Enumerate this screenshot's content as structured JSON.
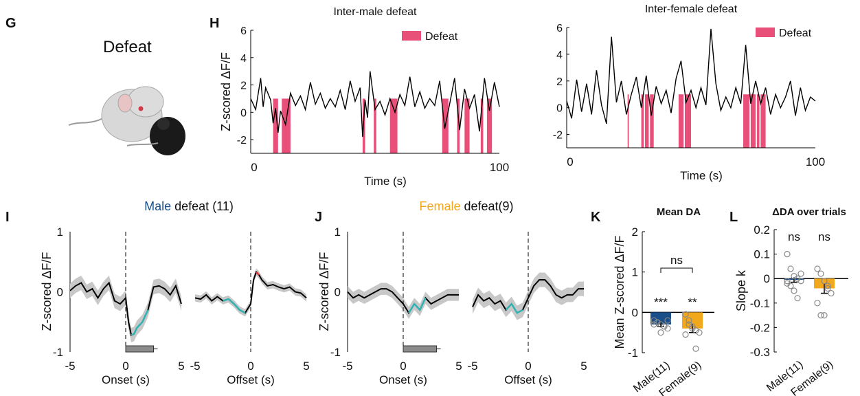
{
  "panel_letters": {
    "G": "G",
    "H": "H",
    "I": "I",
    "J": "J",
    "K": "K",
    "L": "L"
  },
  "illustration": {
    "label": "Defeat"
  },
  "colors": {
    "defeat": "#e8507a",
    "male": "#1a4f8a",
    "female": "#f2a81d",
    "trace": "#000000",
    "sem": "#c8c8c8",
    "cyan": "#2fb3b3",
    "red": "#e03030",
    "bar_gray": "#8c8c8c"
  },
  "chart_data": [
    {
      "id": "H1",
      "type": "line",
      "title": "Inter-male defeat",
      "xlabel": "Time (s)",
      "ylabel": "Z-scored ΔF/F",
      "legend": "Defeat",
      "xlim": [
        0,
        100
      ],
      "ylim": [
        -3,
        6
      ],
      "xticks": [
        "0",
        "100"
      ],
      "yticks": [
        "6",
        "4",
        "2",
        "0",
        "-2"
      ],
      "defeat_intervals": [
        [
          9,
          11
        ],
        [
          12.5,
          16
        ],
        [
          45,
          46
        ],
        [
          49.5,
          50.5
        ],
        [
          56,
          59
        ],
        [
          77,
          79.5
        ],
        [
          83,
          84
        ],
        [
          86,
          88
        ],
        [
          92.5,
          93.5
        ],
        [
          95,
          97
        ]
      ],
      "trace": {
        "x": [
          0,
          2,
          4,
          5,
          6,
          8,
          9,
          10,
          11,
          12,
          14,
          16,
          18,
          20,
          22,
          24,
          26,
          28,
          30,
          32,
          34,
          36,
          38,
          40,
          42,
          44,
          45,
          46,
          47,
          48,
          50,
          52,
          54,
          56,
          58,
          60,
          62,
          64,
          66,
          68,
          70,
          72,
          74,
          76,
          78,
          80,
          82,
          84,
          86,
          88,
          90,
          92,
          94,
          96,
          98,
          100
        ],
        "y": [
          1.0,
          0.2,
          2.5,
          0.4,
          1.8,
          0.9,
          -0.8,
          0.3,
          -1.5,
          0.1,
          -0.9,
          1.4,
          0.5,
          1.2,
          0.2,
          2.2,
          0.6,
          1.4,
          0.3,
          1.0,
          0.4,
          1.6,
          0.2,
          2.3,
          0.8,
          1.8,
          -1.8,
          0.9,
          -0.4,
          3.0,
          0.2,
          0.8,
          -0.2,
          1.0,
          0.0,
          1.3,
          0.5,
          2.6,
          0.4,
          1.5,
          0.3,
          1.0,
          0.5,
          2.3,
          -1.2,
          0.6,
          2.5,
          -1.3,
          1.7,
          0.3,
          1.3,
          -1.4,
          2.5,
          0.1,
          2.2,
          0.4
        ]
      }
    },
    {
      "id": "H2",
      "type": "line",
      "title": "Inter-female defeat",
      "xlabel": "Time (s)",
      "ylabel": "",
      "legend": "Defeat",
      "xlim": [
        0,
        100
      ],
      "ylim": [
        -3,
        6
      ],
      "xticks": [
        "0",
        "100"
      ],
      "yticks": [
        "6",
        "4",
        "2",
        "0",
        "-2"
      ],
      "defeat_intervals": [
        [
          24.5,
          25
        ],
        [
          30,
          31
        ],
        [
          31.5,
          33
        ],
        [
          33.5,
          35
        ],
        [
          45,
          47
        ],
        [
          47.5,
          50
        ],
        [
          71,
          73.5
        ],
        [
          74,
          76
        ],
        [
          76.5,
          77.5
        ],
        [
          78,
          80
        ]
      ],
      "trace": {
        "x": [
          0,
          2,
          4,
          6,
          8,
          10,
          12,
          14,
          16,
          18,
          20,
          22,
          24,
          26,
          28,
          30,
          32,
          34,
          36,
          38,
          40,
          42,
          44,
          46,
          48,
          50,
          52,
          54,
          56,
          58,
          60,
          62,
          64,
          66,
          68,
          70,
          72,
          74,
          76,
          78,
          80,
          82,
          84,
          86,
          88,
          90,
          92,
          94,
          96,
          98,
          100
        ],
        "y": [
          0.5,
          -0.8,
          2.1,
          -0.3,
          1.8,
          -0.5,
          2.8,
          0.2,
          -1.2,
          5.3,
          0.4,
          2.0,
          -0.5,
          1.0,
          2.3,
          0.0,
          2.4,
          -0.6,
          1.6,
          0.3,
          1.3,
          -0.4,
          2.2,
          3.5,
          0.4,
          1.3,
          0.0,
          1.5,
          0.2,
          5.9,
          1.8,
          -0.2,
          0.8,
          0.0,
          1.5,
          0.3,
          4.7,
          0.3,
          2.0,
          0.3,
          1.5,
          -0.5,
          1.0,
          0.0,
          0.8,
          2.0,
          -0.6,
          1.5,
          -0.2,
          0.8,
          0.5
        ]
      }
    },
    {
      "id": "I",
      "type": "line",
      "title": "defeat (11)",
      "title_prefix": "Male",
      "ylabel": "Z-scored ΔF/F",
      "ylim": [
        -1,
        1
      ],
      "yticks": [
        "1",
        "0",
        "-1"
      ],
      "subplots": [
        {
          "xlabel": "Onset (s)",
          "xlim": [
            -5,
            5
          ],
          "xticks": [
            "-5",
            "0",
            "5"
          ],
          "x": [
            -5,
            -4.5,
            -4,
            -3.5,
            -3,
            -2.5,
            -2,
            -1.5,
            -1,
            -0.5,
            0,
            0.25,
            0.5,
            0.75,
            1,
            1.5,
            2,
            2.5,
            3,
            3.5,
            4,
            4.5,
            5
          ],
          "y": [
            0.02,
            0.1,
            0.15,
            0.0,
            0.05,
            -0.1,
            0.05,
            0.15,
            -0.15,
            -0.2,
            -0.1,
            -0.5,
            -0.72,
            -0.7,
            -0.6,
            -0.5,
            -0.3,
            0.08,
            0.1,
            0.05,
            -0.05,
            0.1,
            -0.2
          ],
          "sem": 0.12,
          "bar_end": 2.5,
          "cyan": [
            0.3,
            2.2
          ]
        },
        {
          "xlabel": "Offset (s)",
          "xlim": [
            -5,
            5
          ],
          "xticks": [
            "-5",
            "0",
            "5"
          ],
          "x": [
            -5,
            -4.5,
            -4,
            -3.5,
            -3,
            -2.5,
            -2,
            -1.5,
            -1,
            -0.5,
            0,
            0.25,
            0.5,
            0.75,
            1,
            1.5,
            2,
            2.5,
            3,
            3.5,
            4,
            4.5,
            5
          ],
          "y": [
            -0.1,
            -0.12,
            -0.05,
            -0.15,
            -0.08,
            -0.15,
            -0.12,
            -0.2,
            -0.3,
            -0.35,
            -0.2,
            0.2,
            0.33,
            0.28,
            0.2,
            0.1,
            0.12,
            0.08,
            0.05,
            0.08,
            0.0,
            -0.02,
            -0.1
          ],
          "sem": 0.06,
          "cyan": [
            -2.5,
            -0.2
          ],
          "red": [
            0.3,
            0.9
          ]
        }
      ]
    },
    {
      "id": "J",
      "type": "line",
      "title": "defeat(9)",
      "title_prefix": "Female",
      "ylabel": "Z-scored ΔF/F",
      "ylim": [
        -1,
        1
      ],
      "yticks": [
        "1",
        "0",
        "-1"
      ],
      "subplots": [
        {
          "xlabel": "Onset (s)",
          "xlim": [
            -5,
            5
          ],
          "xticks": [
            "-5",
            "0",
            "5"
          ],
          "x": [
            -5,
            -4.5,
            -4,
            -3.5,
            -3,
            -2.5,
            -2,
            -1.5,
            -1,
            -0.5,
            0,
            0.5,
            1,
            1.5,
            2,
            2.5,
            3,
            3.5,
            4,
            4.5,
            5
          ],
          "y": [
            0.0,
            -0.1,
            -0.05,
            -0.1,
            -0.05,
            0.0,
            0.05,
            0.05,
            0.0,
            -0.1,
            -0.2,
            -0.35,
            -0.2,
            -0.3,
            -0.1,
            -0.2,
            -0.15,
            -0.1,
            -0.05,
            -0.05,
            -0.05
          ],
          "sem": 0.1,
          "bar_end": 3.0,
          "cyan": [
            0.2,
            2.2
          ]
        },
        {
          "xlabel": "Offset (s)",
          "xlim": [
            -5,
            5
          ],
          "xticks": [
            "-5",
            "0",
            "5"
          ],
          "x": [
            -5,
            -4.5,
            -4,
            -3.5,
            -3,
            -2.5,
            -2,
            -1.5,
            -1,
            -0.5,
            0,
            0.5,
            1,
            1.5,
            2,
            2.5,
            3,
            3.5,
            4,
            4.5,
            5
          ],
          "y": [
            -0.25,
            -0.05,
            -0.15,
            -0.1,
            -0.2,
            -0.15,
            -0.3,
            -0.2,
            -0.35,
            -0.3,
            -0.1,
            0.1,
            0.2,
            0.2,
            0.1,
            -0.05,
            -0.1,
            -0.05,
            -0.05,
            0.05,
            0.05
          ],
          "sem": 0.12,
          "cyan": [
            -2.0,
            -0.1
          ]
        }
      ]
    },
    {
      "id": "K",
      "type": "bar",
      "title": "Mean DA",
      "ylabel": "Mean  Z-scored ΔF/F",
      "categories": [
        "Male(11)",
        "Female(9)"
      ],
      "values": [
        -0.3,
        -0.4
      ],
      "sem": [
        0.05,
        0.1
      ],
      "ylim": [
        -1,
        2
      ],
      "yticks": [
        "2",
        "1",
        "0",
        "-1"
      ],
      "stars": [
        "***",
        "**"
      ],
      "comparison": "ns",
      "points": [
        [
          -0.2,
          -0.25,
          -0.3,
          -0.35,
          -0.4,
          -0.3,
          -0.25,
          -0.5,
          -0.35,
          -0.2,
          -0.3
        ],
        [
          -0.05,
          -0.2,
          -0.35,
          -0.45,
          -0.5,
          -0.55,
          -0.3,
          -0.4,
          -0.9
        ]
      ]
    },
    {
      "id": "L",
      "type": "bar",
      "title": "ΔDA over trials",
      "ylabel": "Slope k",
      "categories": [
        "Male(11)",
        "Female(9)"
      ],
      "values": [
        -0.005,
        -0.04
      ],
      "sem": [
        0.01,
        0.02
      ],
      "ylim": [
        -0.3,
        0.2
      ],
      "yticks": [
        "0.2",
        "0.1",
        "0",
        "-0.1",
        "-0.2",
        "-0.3"
      ],
      "stars": [
        "ns",
        "ns"
      ],
      "points": [
        [
          0.1,
          0.04,
          0.01,
          0.0,
          -0.01,
          -0.02,
          -0.03,
          -0.05,
          -0.08,
          0.02,
          -0.01
        ],
        [
          0.04,
          0.02,
          -0.01,
          -0.03,
          -0.06,
          -0.1,
          -0.15,
          -0.15,
          -0.04
        ]
      ]
    }
  ]
}
